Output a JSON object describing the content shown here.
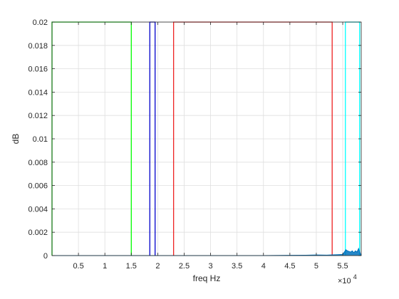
{
  "chart_data": {
    "type": "line",
    "xlabel": "freq Hz",
    "ylabel": "dB",
    "xlim": [
      0,
      58500
    ],
    "ylim": [
      0,
      0.02
    ],
    "x_exponent_label": "×10",
    "x_exponent_power": "4",
    "x_ticks": [
      5000,
      10000,
      15000,
      20000,
      25000,
      30000,
      35000,
      40000,
      45000,
      50000,
      55000
    ],
    "x_tick_labels": [
      "0.5",
      "1",
      "1.5",
      "2",
      "2.5",
      "3",
      "3.5",
      "4",
      "4.5",
      "5",
      "5.5"
    ],
    "y_ticks": [
      0,
      0.002,
      0.004,
      0.006,
      0.008,
      0.01,
      0.012,
      0.014,
      0.016,
      0.018,
      0.02
    ],
    "y_tick_labels": [
      "0",
      "0.002",
      "0.004",
      "0.006",
      "0.008",
      "0.01",
      "0.012",
      "0.014",
      "0.016",
      "0.018",
      "0.02"
    ],
    "grid": true,
    "series": [
      {
        "color": "#00ff00",
        "type": "band",
        "x_start": 0,
        "x_end": 15000,
        "level": 0.02
      },
      {
        "color": "#0000cc",
        "type": "band",
        "x_start": 18500,
        "x_end": 19500,
        "level": 0.02
      },
      {
        "color": "#ee2222",
        "type": "band",
        "x_start": 23000,
        "x_end": 53000,
        "level": 0.02
      },
      {
        "color": "#00ffff",
        "type": "band",
        "x_start": 55500,
        "x_end": 58200,
        "level": 0.02
      },
      {
        "color": "#0072bd",
        "type": "spectrum",
        "x": [
          0,
          5000,
          10000,
          15000,
          20000,
          25000,
          30000,
          35000,
          40000,
          45000,
          48000,
          50000,
          52000,
          53000,
          54000,
          55000,
          55300,
          55600,
          55900,
          56200,
          56500,
          56800,
          57100,
          57400,
          57700,
          58000,
          58300,
          58500
        ],
        "y": [
          0,
          0,
          0,
          0,
          0,
          0,
          0,
          0,
          0,
          2e-05,
          3e-05,
          5e-05,
          4e-05,
          6e-05,
          8e-05,
          0.0001,
          0.0003,
          0.0005,
          0.0004,
          0.00035,
          0.0003,
          0.0004,
          0.00025,
          0.0004,
          0.0003,
          0.0006,
          0.0002,
          0
        ]
      }
    ]
  }
}
